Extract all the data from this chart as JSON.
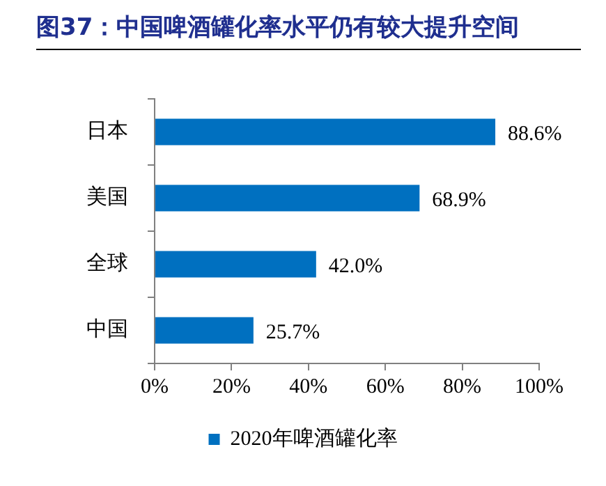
{
  "chart_data": {
    "type": "bar",
    "orientation": "horizontal",
    "title": "图37：中国啤酒罐化率水平仍有较大提升空间",
    "categories": [
      "日本",
      "美国",
      "全球",
      "中国"
    ],
    "series": [
      {
        "name": "2020年啤酒罐化率",
        "color": "#0070c0",
        "values": [
          88.6,
          68.9,
          42.0,
          25.7
        ],
        "value_labels": [
          "88.6%",
          "68.9%",
          "42.0%",
          "25.7%"
        ]
      }
    ],
    "xlim": [
      0,
      100
    ],
    "xticks": [
      {
        "value": 0,
        "label": "0%"
      },
      {
        "value": 20,
        "label": "20%"
      },
      {
        "value": 40,
        "label": "40%"
      },
      {
        "value": 60,
        "label": "60%"
      },
      {
        "value": 80,
        "label": "80%"
      },
      {
        "value": 100,
        "label": "100%"
      }
    ],
    "grid": false,
    "legend": "bottom"
  }
}
